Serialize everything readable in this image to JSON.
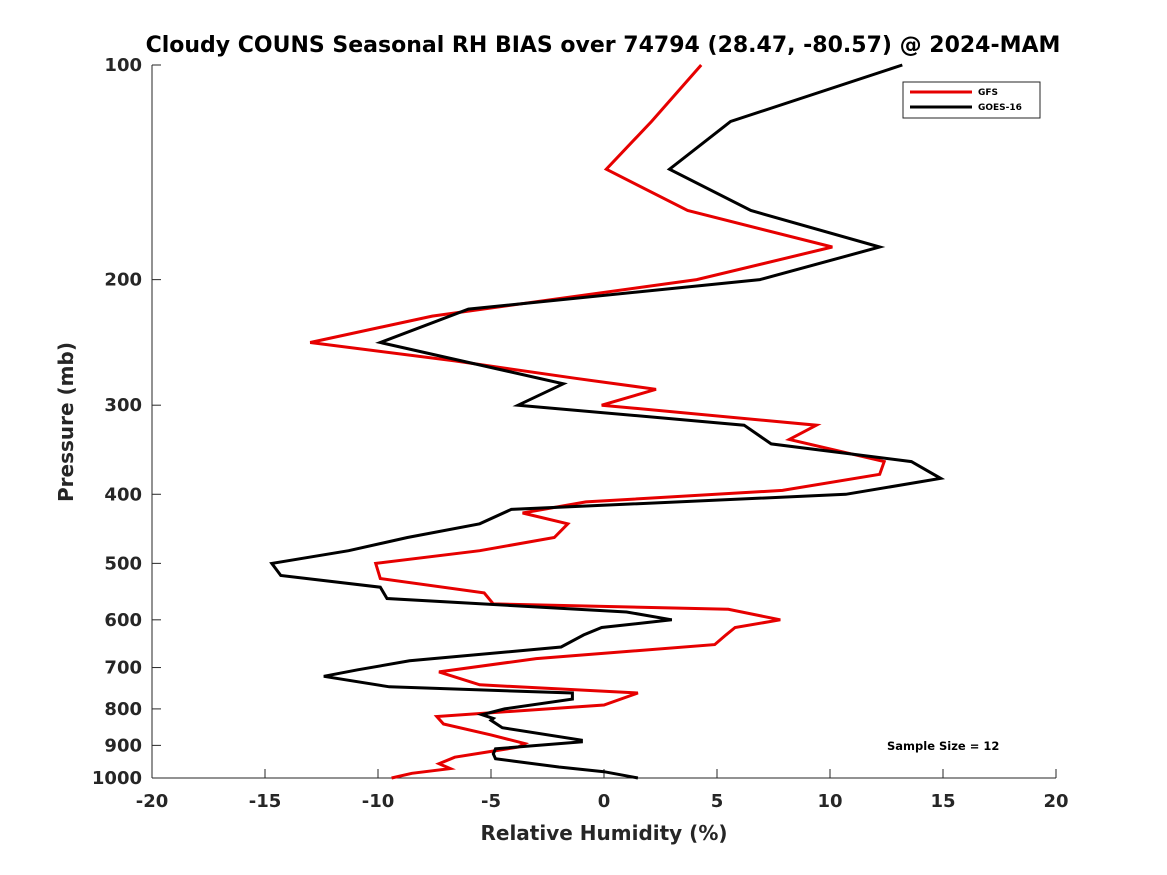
{
  "chart_data": {
    "type": "line",
    "title": "Cloudy COUNS Seasonal RH BIAS over 74794 (28.47, -80.57) @ 2024-MAM",
    "xlabel": "Relative Humidity (%)",
    "ylabel": "Pressure (mb)",
    "xlim": [
      -20,
      20
    ],
    "ylim": [
      1000,
      100
    ],
    "yscale": "log",
    "y_reversed": true,
    "grid": false,
    "xticks": [
      -20,
      -15,
      -10,
      -5,
      0,
      5,
      10,
      15,
      20
    ],
    "xtick_labels": [
      "-20",
      "-15",
      "-10",
      "-5",
      "0",
      "5",
      "10",
      "15",
      "20"
    ],
    "yticks": [
      100,
      200,
      300,
      400,
      500,
      600,
      700,
      800,
      900,
      1000
    ],
    "ytick_labels": [
      "100",
      "200",
      "300",
      "400",
      "500",
      "600",
      "700",
      "800",
      "900",
      "1000"
    ],
    "legend": {
      "position": "top-right",
      "entries": [
        "GFS",
        "GOES-16"
      ]
    },
    "annotation": "Sample Size = 12",
    "series": [
      {
        "name": "GFS",
        "color": "#e60000",
        "points": [
          [
            4.3,
            100
          ],
          [
            2.1,
            120
          ],
          [
            0.1,
            140
          ],
          [
            3.7,
            160
          ],
          [
            10.1,
            180
          ],
          [
            4.1,
            200
          ],
          [
            -7.6,
            225
          ],
          [
            -13.0,
            245
          ],
          [
            -6.6,
            260
          ],
          [
            -1.3,
            275
          ],
          [
            2.3,
            285
          ],
          [
            -0.1,
            300
          ],
          [
            9.4,
            320
          ],
          [
            8.2,
            335
          ],
          [
            12.4,
            360
          ],
          [
            12.2,
            375
          ],
          [
            7.9,
            395
          ],
          [
            -0.8,
            410
          ],
          [
            -3.6,
            425
          ],
          [
            -1.6,
            440
          ],
          [
            -2.2,
            460
          ],
          [
            -5.5,
            480
          ],
          [
            -10.1,
            500
          ],
          [
            -9.9,
            525
          ],
          [
            -5.3,
            550
          ],
          [
            -4.9,
            570
          ],
          [
            5.5,
            580
          ],
          [
            7.8,
            600
          ],
          [
            5.8,
            615
          ],
          [
            5.4,
            630
          ],
          [
            4.9,
            650
          ],
          [
            -3.0,
            680
          ],
          [
            -7.3,
            710
          ],
          [
            -5.5,
            740
          ],
          [
            1.5,
            760
          ],
          [
            0.0,
            790
          ],
          [
            -7.4,
            820
          ],
          [
            -7.1,
            840
          ],
          [
            -5.0,
            870
          ],
          [
            -3.5,
            895
          ],
          [
            -3.8,
            905
          ],
          [
            -6.6,
            935
          ],
          [
            -7.3,
            955
          ],
          [
            -6.8,
            970
          ],
          [
            -8.5,
            985
          ],
          [
            -9.4,
            1000
          ]
        ]
      },
      {
        "name": "GOES-16",
        "color": "#000000",
        "points": [
          [
            13.2,
            100
          ],
          [
            5.6,
            120
          ],
          [
            2.9,
            140
          ],
          [
            6.5,
            160
          ],
          [
            12.2,
            180
          ],
          [
            6.9,
            200
          ],
          [
            -6.0,
            220
          ],
          [
            -9.9,
            245
          ],
          [
            -6.3,
            260
          ],
          [
            -1.8,
            280
          ],
          [
            -3.8,
            300
          ],
          [
            6.2,
            320
          ],
          [
            7.4,
            340
          ],
          [
            13.6,
            360
          ],
          [
            14.9,
            380
          ],
          [
            10.7,
            400
          ],
          [
            -4.1,
            420
          ],
          [
            -5.5,
            440
          ],
          [
            -8.7,
            460
          ],
          [
            -11.3,
            480
          ],
          [
            -14.7,
            500
          ],
          [
            -14.3,
            520
          ],
          [
            -9.9,
            540
          ],
          [
            -9.6,
            560
          ],
          [
            1.0,
            585
          ],
          [
            3.0,
            600
          ],
          [
            -0.1,
            615
          ],
          [
            -0.9,
            630
          ],
          [
            -1.9,
            655
          ],
          [
            -8.6,
            685
          ],
          [
            -10.9,
            705
          ],
          [
            -12.4,
            720
          ],
          [
            -9.5,
            745
          ],
          [
            -1.4,
            760
          ],
          [
            -1.4,
            775
          ],
          [
            -4.4,
            800
          ],
          [
            -5.4,
            815
          ],
          [
            -4.9,
            825
          ],
          [
            -5.0,
            830
          ],
          [
            -4.5,
            850
          ],
          [
            -1.0,
            885
          ],
          [
            -1.0,
            890
          ],
          [
            -4.8,
            910
          ],
          [
            -4.9,
            925
          ],
          [
            -4.8,
            940
          ],
          [
            -2.0,
            965
          ],
          [
            0.0,
            980
          ],
          [
            1.5,
            1000
          ]
        ]
      }
    ]
  }
}
